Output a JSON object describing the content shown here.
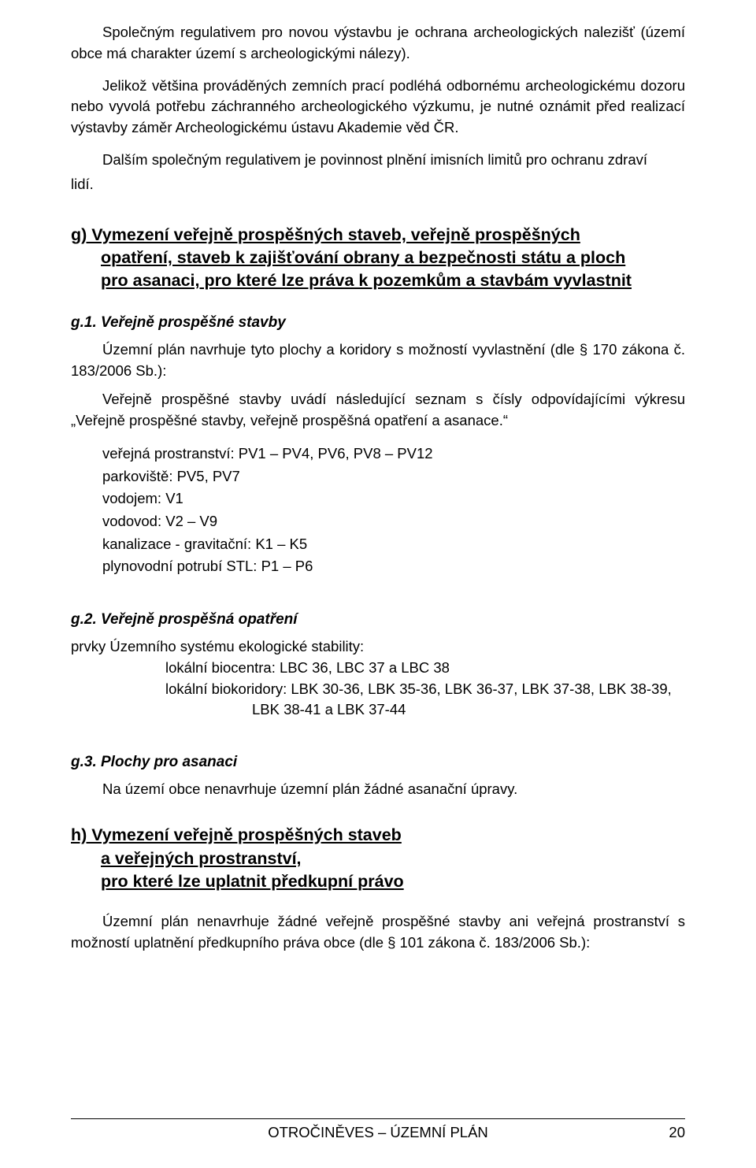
{
  "intro": {
    "p1": "Společným regulativem pro novou výstavbu je ochrana archeologických nalezišť (území obce má charakter území s archeologickými nálezy).",
    "p2": "Jelikož většina prováděných zemních prací podléhá odbornému archeologickému dozoru nebo vyvolá potřebu záchranného archeologického výzkumu, je nutné oznámit před realizací výstavby záměr Archeologickému ústavu Akademie věd ČR.",
    "p3": "Dalším společným regulativem je povinnost plnění imisních limitů pro ochranu zdraví",
    "p3_tail": "lidí."
  },
  "section_g": {
    "title_line1": "g) Vymezení veřejně prospěšných staveb, veřejně prospěšných",
    "title_line2": "opatření, staveb k zajišťování obrany a bezpečnosti státu a ploch",
    "title_line3": "pro asanaci, pro které lze práva k pozemkům a stavbám vyvlastnit"
  },
  "g1": {
    "heading": "g.1. Veřejně prospěšné stavby",
    "p1": "Územní plán navrhuje tyto plochy a koridory s možností vyvlastnění (dle § 170 zákona č. 183/2006 Sb.):",
    "p2": "Veřejně prospěšné stavby uvádí následující seznam s čísly odpovídajícími výkresu „Veřejně prospěšné stavby, veřejně prospěšná opatření a asanace.“",
    "items": [
      "veřejná prostranství: PV1 – PV4, PV6, PV8 – PV12",
      "parkoviště: PV5, PV7",
      "vodojem: V1",
      "vodovod: V2 – V9",
      "kanalizace - gravitační: K1 – K5",
      "plynovodní potrubí STL: P1 – P6"
    ]
  },
  "g2": {
    "heading": "g.2. Veřejně prospěšná opatření",
    "lead": "prvky Územního systému ekologické stability:",
    "line_biocentra": "lokální biocentra: LBC 36, LBC 37 a LBC 38",
    "line_biokoridory": "lokální biokoridory: LBK 30-36, LBK 35-36, LBK 36-37, LBK 37-38, LBK 38-39,",
    "line_biokoridory2": "LBK 38-41 a LBK 37-44"
  },
  "g3": {
    "heading": "g.3. Plochy pro asanaci",
    "p1": "Na území obce nenavrhuje územní plán žádné asanační úpravy."
  },
  "section_h": {
    "title_line1": "h) Vymezení veřejně prospěšných staveb",
    "title_line2": "a veřejných prostranství,",
    "title_line3": "pro které lze uplatnit předkupní právo",
    "p1": "Územní plán nenavrhuje žádné veřejně prospěšné stavby ani veřejná prostranství s možností uplatnění předkupního práva obce (dle § 101 zákona č. 183/2006 Sb.):"
  },
  "footer": {
    "center": "OTROČINĚVES – ÚZEMNÍ PLÁN",
    "page": "20"
  }
}
